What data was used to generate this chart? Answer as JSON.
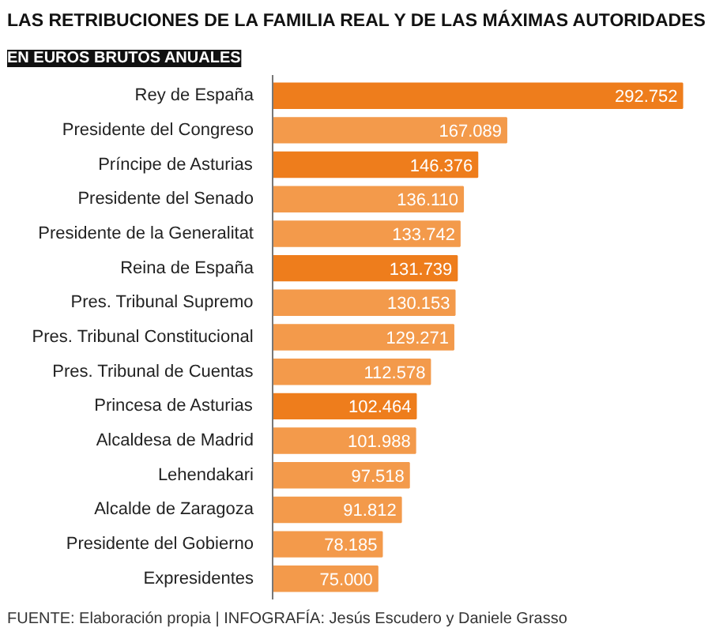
{
  "chart_data": {
    "type": "bar",
    "orientation": "horizontal",
    "title": "LAS RETRIBUCIONES DE LA FAMILIA REAL Y DE LAS MÁXIMAS AUTORIDADES",
    "subtitle": "EN EUROS BRUTOS ANUALES",
    "categories": [
      "Rey de España",
      "Presidente del Congreso",
      "Príncipe de Asturias",
      "Presidente del Senado",
      "Presidente de la Generalitat",
      "Reina de España",
      "Pres. Tribunal Supremo",
      "Pres. Tribunal Constitucional",
      "Pres. Tribunal de Cuentas",
      "Princesa de Asturias",
      "Alcaldesa de Madrid",
      "Lehendakari",
      "Alcalde de Zaragoza",
      "Presidente del Gobierno",
      "Expresidentes"
    ],
    "values": [
      292752,
      167089,
      146376,
      136110,
      133742,
      131739,
      130153,
      129271,
      112578,
      102464,
      101988,
      97518,
      91812,
      78185,
      75000
    ],
    "value_labels": [
      "292.752",
      "167.089",
      "146.376",
      "136.110",
      "133.742",
      "131.739",
      "130.153",
      "129.271",
      "112.578",
      "102.464",
      "101.988",
      "97.518",
      "91.812",
      "78.185",
      "75.000"
    ],
    "colors": [
      "#ee7d1c",
      "#f39a4b",
      "#ee7d1c",
      "#f39a4b",
      "#f39a4b",
      "#ee7d1c",
      "#f39a4b",
      "#f39a4b",
      "#f39a4b",
      "#ee7d1c",
      "#f39a4b",
      "#f39a4b",
      "#f39a4b",
      "#f39a4b",
      "#f39a4b"
    ],
    "annotations": [
      "FUENTE: Elaboración propia | INFOGRAFÍA: Jesús Escudero y Daniele Grasso"
    ],
    "grid": false,
    "tick_labels": "y"
  }
}
